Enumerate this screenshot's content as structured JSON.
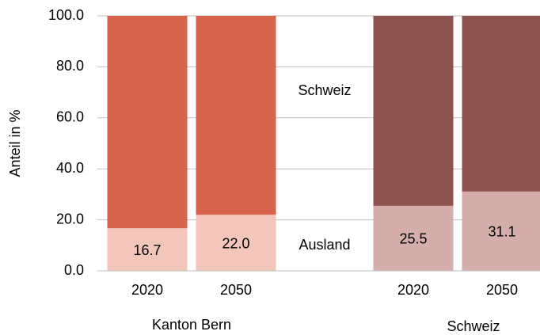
{
  "chart_data": {
    "type": "stacked_bar",
    "y_label": "Anteil in %",
    "categories": [
      "2020",
      "2050",
      "2020",
      "2050"
    ],
    "groups": [
      "Kanton Bern",
      "Schweiz"
    ],
    "series": [
      {
        "name": "Ausland",
        "colors": [
          "#f2c6ba",
          "#f2c6ba",
          "#d5aeab",
          "#d5aeab"
        ],
        "values": [
          16.7,
          22.0,
          25.5,
          31.1
        ],
        "value_labels": [
          "16.7",
          "22.0",
          "25.5",
          "31.1"
        ]
      },
      {
        "name": "Schweiz",
        "colors": [
          "#d6634a",
          "#d6634a",
          "#8e534e",
          "#8e534e"
        ],
        "values": [
          83.3,
          78.0,
          74.5,
          68.9
        ]
      }
    ],
    "ylim": [
      0,
      100
    ],
    "yticks": [
      {
        "value": 0,
        "label": "0.0"
      },
      {
        "value": 20,
        "label": "20.0"
      },
      {
        "value": 40,
        "label": "40.0"
      },
      {
        "value": 60,
        "label": "60.0"
      },
      {
        "value": 80,
        "label": "80.0"
      },
      {
        "value": 100,
        "label": "100.0"
      }
    ],
    "grid": true
  }
}
